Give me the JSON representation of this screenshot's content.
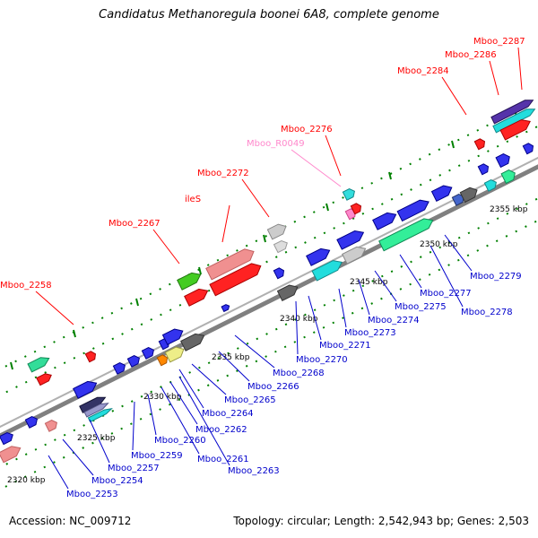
{
  "title": "Candidatus Methanoregula boonei 6A8, complete genome",
  "footer": {
    "accession": "Accession: NC_009712",
    "summary": "Topology: circular; Length: 2,542,943 bp; Genes: 2,503"
  },
  "scale_labels": [
    "2320 kbp",
    "2325 kbp",
    "2330 kbp",
    "2335 kbp",
    "2340 kbp",
    "2345 kbp",
    "2350 kbp",
    "2355 kbp"
  ],
  "colors": {
    "backbone": "#808080",
    "tick": "#008000",
    "top_label": "#ff0000",
    "rna_label": "#ff88cc",
    "bottom_label": "#0000cc"
  },
  "top_labels": [
    "Mboo_2258",
    "Mboo_2267",
    "ileS",
    "Mboo_2272",
    "Mboo_R0049",
    "Mboo_2276",
    "Mboo_2284",
    "Mboo_2286",
    "Mboo_2287"
  ],
  "bottom_labels": [
    "Mboo_2253",
    "Mboo_2254",
    "Mboo_2257",
    "Mboo_2259",
    "Mboo_2260",
    "Mboo_2261",
    "Mboo_2262",
    "Mboo_2263",
    "Mboo_2264",
    "Mboo_2265",
    "Mboo_2266",
    "Mboo_2268",
    "Mboo_2270",
    "Mboo_2271",
    "Mboo_2273",
    "Mboo_2274",
    "Mboo_2275",
    "Mboo_2277",
    "Mboo_2278",
    "Mboo_2279"
  ]
}
